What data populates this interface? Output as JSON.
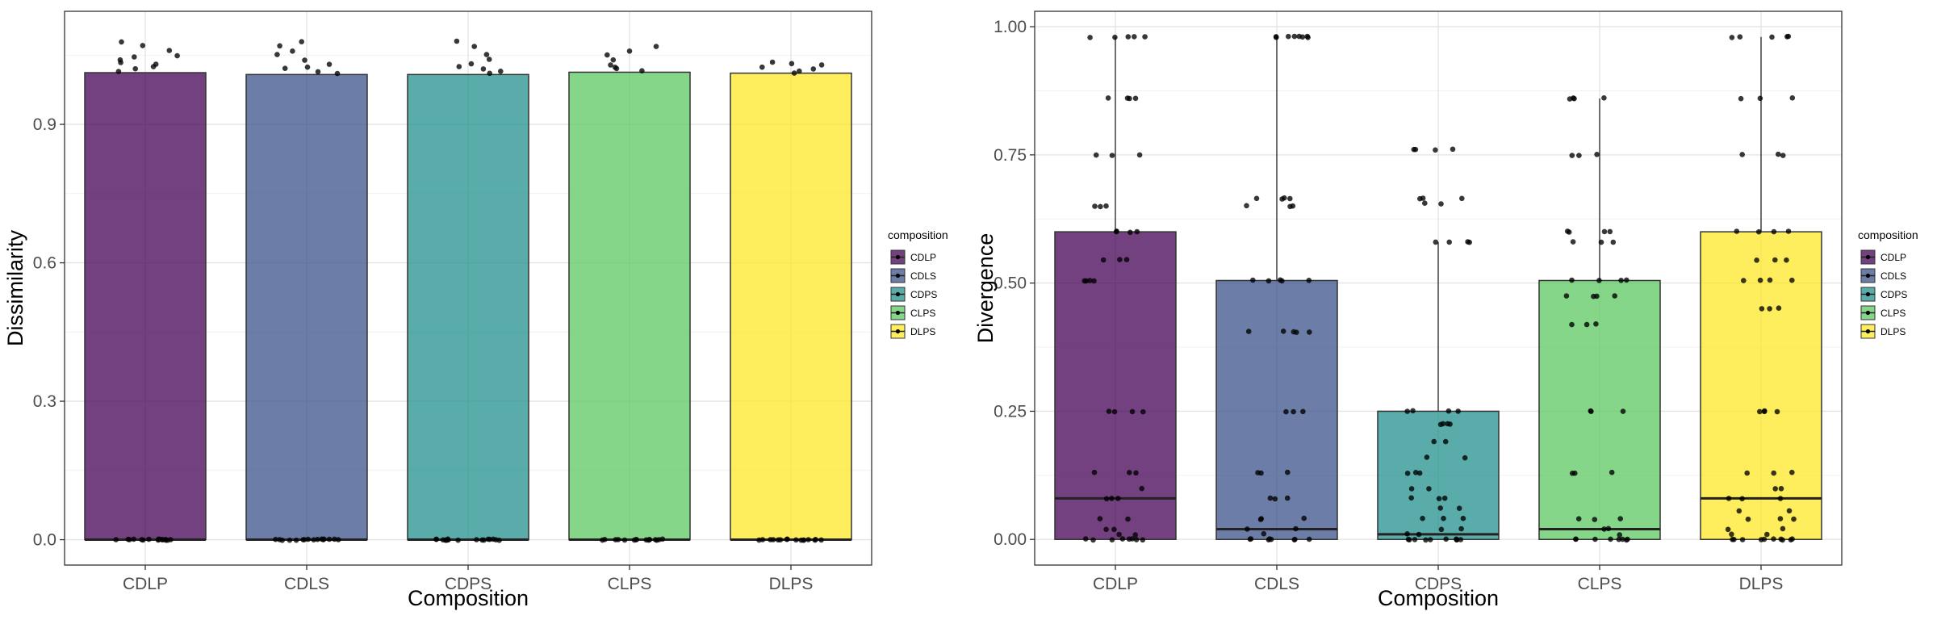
{
  "colors": {
    "CDLP": "#440154",
    "CDLS": "#3b528b",
    "CDPS": "#21908c",
    "CLPS": "#5dc863",
    "DLPS": "#fde725"
  },
  "legend": {
    "title": "composition",
    "items": [
      "CDLP",
      "CDLS",
      "CDPS",
      "CLPS",
      "DLPS"
    ]
  },
  "chart_data": [
    {
      "type": "box",
      "xlabel": "Composition",
      "ylabel": "Dissimilarity",
      "categories": [
        "CDLP",
        "CDLS",
        "CDPS",
        "CLPS",
        "DLPS"
      ],
      "ylim": [
        -0.055,
        1.145
      ],
      "yticks": [
        0.0,
        0.3,
        0.6,
        0.9
      ],
      "ytick_labels": [
        "0.0",
        "0.3",
        "0.6",
        "0.9"
      ],
      "grid": true,
      "legend_position": "right",
      "boxes": [
        {
          "category": "CDLP",
          "q1": 0.0,
          "median": 0.0,
          "q3": 1.012,
          "whisker_low": 0.0,
          "whisker_high": 1.012
        },
        {
          "category": "CDLS",
          "q1": 0.0,
          "median": 0.0,
          "q3": 1.008,
          "whisker_low": 0.0,
          "whisker_high": 1.008
        },
        {
          "category": "CDPS",
          "q1": 0.0,
          "median": 0.0,
          "q3": 1.008,
          "whisker_low": 0.0,
          "whisker_high": 1.008
        },
        {
          "category": "CLPS",
          "q1": 0.0,
          "median": 0.0,
          "q3": 1.013,
          "whisker_low": 0.0,
          "whisker_high": 1.013
        },
        {
          "category": "DLPS",
          "q1": 0.0,
          "median": 0.0,
          "q3": 1.011,
          "whisker_low": 0.0,
          "whisker_high": 1.011
        }
      ],
      "points": [
        {
          "category": "CDLP",
          "values": [
            0,
            0,
            0,
            0,
            0,
            0,
            0,
            0,
            0,
            0,
            0,
            0,
            0,
            0,
            0,
            0,
            1.015,
            1.02,
            1.025,
            1.03,
            1.035,
            1.04,
            1.045,
            1.05,
            1.06,
            1.07,
            1.08
          ]
        },
        {
          "category": "CDLS",
          "values": [
            0,
            0,
            0,
            0,
            0,
            0,
            0,
            0,
            0,
            0,
            0,
            0,
            0,
            0,
            0,
            0,
            1.01,
            1.015,
            1.02,
            1.025,
            1.03,
            1.04,
            1.05,
            1.06,
            1.07,
            1.08
          ]
        },
        {
          "category": "CDPS",
          "values": [
            0,
            0,
            0,
            0,
            0,
            0,
            0,
            0,
            0,
            0,
            0,
            0,
            0,
            0,
            0,
            0,
            1.01,
            1.015,
            1.02,
            1.025,
            1.03,
            1.04,
            1.05,
            1.07,
            1.08
          ]
        },
        {
          "category": "CLPS",
          "values": [
            0,
            0,
            0,
            0,
            0,
            0,
            0,
            0,
            0,
            0,
            0,
            0,
            0,
            0,
            0,
            0,
            1.015,
            1.02,
            1.025,
            1.03,
            1.04,
            1.05,
            1.06,
            1.07
          ]
        },
        {
          "category": "DLPS",
          "values": [
            0,
            0,
            0,
            0,
            0,
            0,
            0,
            0,
            0,
            0,
            0,
            0,
            0,
            0,
            0,
            0,
            1.012,
            1.016,
            1.02,
            1.024,
            1.028,
            1.032,
            1.036
          ]
        }
      ]
    },
    {
      "type": "box",
      "xlabel": "Composition",
      "ylabel": "Divergence",
      "categories": [
        "CDLP",
        "CDLS",
        "CDPS",
        "CLPS",
        "DLPS"
      ],
      "ylim": [
        -0.05,
        1.03
      ],
      "yticks": [
        0.0,
        0.25,
        0.5,
        0.75,
        1.0
      ],
      "ytick_labels": [
        "0.00",
        "0.25",
        "0.50",
        "0.75",
        "1.00"
      ],
      "grid": true,
      "legend_position": "right",
      "boxes": [
        {
          "category": "CDLP",
          "q1": 0.0,
          "median": 0.08,
          "q3": 0.6,
          "whisker_low": 0.0,
          "whisker_high": 0.98
        },
        {
          "category": "CDLS",
          "q1": 0.0,
          "median": 0.02,
          "q3": 0.505,
          "whisker_low": 0.0,
          "whisker_high": 0.98
        },
        {
          "category": "CDPS",
          "q1": 0.0,
          "median": 0.01,
          "q3": 0.25,
          "whisker_low": 0.0,
          "whisker_high": 0.58
        },
        {
          "category": "CLPS",
          "q1": 0.0,
          "median": 0.02,
          "q3": 0.505,
          "whisker_low": 0.0,
          "whisker_high": 0.86
        },
        {
          "category": "DLPS",
          "q1": 0.0,
          "median": 0.08,
          "q3": 0.6,
          "whisker_low": 0.0,
          "whisker_high": 0.98
        }
      ],
      "points": [
        {
          "category": "CDLP",
          "values": [
            0,
            0,
            0,
            0,
            0,
            0,
            0,
            0,
            0.01,
            0.01,
            0.02,
            0.02,
            0.04,
            0.04,
            0.08,
            0.08,
            0.08,
            0.1,
            0.13,
            0.13,
            0.13,
            0.25,
            0.25,
            0.25,
            0.25,
            0.505,
            0.505,
            0.505,
            0.505,
            0.545,
            0.545,
            0.545,
            0.6,
            0.6,
            0.6,
            0.6,
            0.65,
            0.65,
            0.65,
            0.75,
            0.75,
            0.75,
            0.86,
            0.86,
            0.86,
            0.86,
            0.98,
            0.98,
            0.98,
            0.98,
            0.98
          ]
        },
        {
          "category": "CDLS",
          "values": [
            0,
            0,
            0,
            0,
            0,
            0,
            0,
            0,
            0.01,
            0.02,
            0.02,
            0.04,
            0.04,
            0.04,
            0.08,
            0.08,
            0.08,
            0.13,
            0.13,
            0.13,
            0.25,
            0.25,
            0.25,
            0.405,
            0.405,
            0.405,
            0.405,
            0.405,
            0.505,
            0.505,
            0.505,
            0.505,
            0.505,
            0.65,
            0.65,
            0.65,
            0.665,
            0.665,
            0.665,
            0.665,
            0.98,
            0.98,
            0.98,
            0.98,
            0.98,
            0.98,
            0.98,
            0.98
          ]
        },
        {
          "category": "CDPS",
          "values": [
            0,
            0,
            0,
            0,
            0,
            0,
            0,
            0,
            0,
            0,
            0.01,
            0.01,
            0.02,
            0.02,
            0.04,
            0.04,
            0.04,
            0.06,
            0.06,
            0.08,
            0.08,
            0.08,
            0.1,
            0.1,
            0.13,
            0.13,
            0.13,
            0.16,
            0.16,
            0.19,
            0.19,
            0.225,
            0.225,
            0.225,
            0.225,
            0.25,
            0.25,
            0.25,
            0.25,
            0.58,
            0.58,
            0.58,
            0.58,
            0.655,
            0.655,
            0.665,
            0.665,
            0.665,
            0.76,
            0.76,
            0.76,
            0.76
          ]
        },
        {
          "category": "CLPS",
          "values": [
            0,
            0,
            0,
            0,
            0,
            0,
            0,
            0,
            0.01,
            0.02,
            0.02,
            0.04,
            0.04,
            0.04,
            0.13,
            0.13,
            0.13,
            0.25,
            0.25,
            0.25,
            0.42,
            0.42,
            0.42,
            0.475,
            0.475,
            0.475,
            0.475,
            0.505,
            0.505,
            0.505,
            0.505,
            0.58,
            0.58,
            0.58,
            0.6,
            0.6,
            0.6,
            0.6,
            0.75,
            0.75,
            0.75,
            0.86,
            0.86,
            0.86,
            0.86
          ]
        },
        {
          "category": "DLPS",
          "values": [
            0,
            0,
            0,
            0,
            0,
            0,
            0,
            0,
            0,
            0,
            0.01,
            0.01,
            0.02,
            0.02,
            0.04,
            0.04,
            0.04,
            0.055,
            0.055,
            0.08,
            0.08,
            0.08,
            0.1,
            0.1,
            0.13,
            0.13,
            0.13,
            0.25,
            0.25,
            0.25,
            0.25,
            0.45,
            0.45,
            0.45,
            0.505,
            0.505,
            0.505,
            0.505,
            0.545,
            0.545,
            0.545,
            0.6,
            0.6,
            0.6,
            0.6,
            0.75,
            0.75,
            0.75,
            0.86,
            0.86,
            0.86,
            0.98,
            0.98,
            0.98,
            0.98,
            0.98
          ]
        }
      ]
    }
  ]
}
